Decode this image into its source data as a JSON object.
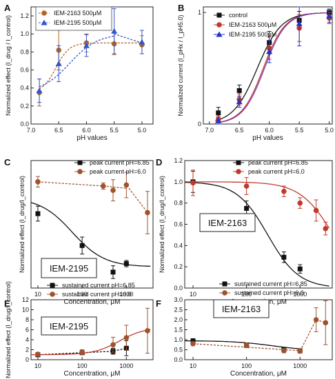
{
  "chart_data": [
    {
      "panel": "A",
      "type": "line",
      "xlabel": "pH values",
      "ylabel": "Normalized effect (I_drug / I_control)",
      "xlim": [
        7.0,
        4.8
      ],
      "ylim": [
        0,
        1.3
      ],
      "xticks": [
        "7.0",
        "6.5",
        "6.0",
        "5.5",
        "5.0"
      ],
      "yticks": [
        "0.0",
        "0.2",
        "0.4",
        "0.6",
        "0.8",
        "1.0",
        "1.2"
      ],
      "legend_position": "top-left",
      "x": [
        6.85,
        6.5,
        6.0,
        5.5,
        5.0
      ],
      "series": [
        {
          "name": "IEM-2163 500μM",
          "color": "#b5651d",
          "marker": "circle",
          "values": [
            0.35,
            0.82,
            0.9,
            0.89,
            0.88
          ],
          "err": [
            0.15,
            0.22,
            0.1,
            0.12,
            0.1
          ]
        },
        {
          "name": "IEM-2195 500μM",
          "color": "#3355cc",
          "marker": "triangle",
          "values": [
            0.37,
            0.67,
            0.87,
            1.03,
            0.91
          ],
          "err": [
            0.13,
            0.2,
            0.12,
            0.25,
            0.13
          ]
        }
      ]
    },
    {
      "panel": "B",
      "type": "line",
      "xlabel": "pH values",
      "ylabel": "Normalized current (I_pHx / I_pH5.0)",
      "xlim": [
        7.1,
        4.95
      ],
      "ylim": [
        0,
        1.05
      ],
      "xticks": [
        "7.0",
        "6.5",
        "6.0",
        "5.5",
        "5.0"
      ],
      "yticks": [
        "0",
        "1"
      ],
      "legend_position": "top-left",
      "x": [
        6.85,
        6.5,
        6.0,
        5.5,
        5.0
      ],
      "series": [
        {
          "name": "control",
          "color": "#111111",
          "marker": "square",
          "values": [
            0.1,
            0.3,
            0.73,
            0.93,
            1.0
          ],
          "err": [
            0.05,
            0.05,
            0.1,
            0.08,
            0.03
          ]
        },
        {
          "name": "IEM-2163 500μM",
          "color": "#c0392b",
          "marker": "circle",
          "values": [
            0.04,
            0.22,
            0.68,
            0.86,
            0.95
          ],
          "err": [
            0.03,
            0.05,
            0.1,
            0.12,
            0.05
          ]
        },
        {
          "name": "IEM-2195 500μM",
          "color": "#2233cc",
          "marker": "triangle",
          "values": [
            0.03,
            0.2,
            0.65,
            0.9,
            0.97
          ],
          "err": [
            0.03,
            0.05,
            0.1,
            0.2,
            0.06
          ]
        }
      ]
    },
    {
      "panel": "C",
      "type": "scatter",
      "label": "IEM-2195",
      "xlabel": "Concentration, μM",
      "ylabel": "Normalized effect (I_drug/I_control)",
      "xscale": "log",
      "xlim": [
        7,
        4000
      ],
      "ylim": [
        0,
        1.2
      ],
      "xticks": [
        "10",
        "100",
        "1000"
      ],
      "yticks": [],
      "legend_position": "top",
      "series": [
        {
          "name": "peak current pH=6.85",
          "color": "#111111",
          "marker": "square",
          "x": [
            10,
            100,
            500,
            1000
          ],
          "values": [
            0.7,
            0.4,
            0.15,
            0.23
          ],
          "err": [
            0.07,
            0.08,
            0.06,
            0.03
          ]
        },
        {
          "name": "peak current pH=6.0",
          "color": "#a0522d",
          "marker": "circle",
          "x": [
            10,
            300,
            500,
            1000,
            3000
          ],
          "values": [
            1.0,
            0.96,
            0.92,
            0.97,
            0.71
          ],
          "err": [
            0.05,
            0.03,
            0.1,
            0.12,
            0.2
          ]
        }
      ]
    },
    {
      "panel": "D",
      "type": "scatter",
      "label": "IEM-2163",
      "xlabel": "Concentration, μM",
      "ylabel": "Normalized effect (I_drug/I_control)",
      "xscale": "log",
      "xlim": [
        7,
        4000
      ],
      "ylim": [
        0,
        1.2
      ],
      "xticks": [
        "10",
        "100",
        "1000"
      ],
      "yticks": [
        "0.0",
        "0.2",
        "0.4",
        "0.6",
        "0.8",
        "1.0",
        "1.2"
      ],
      "legend_position": "top",
      "series": [
        {
          "name": "peak current pH=6.85",
          "color": "#111111",
          "marker": "square",
          "x": [
            10,
            100,
            500,
            1000
          ],
          "values": [
            1.0,
            0.75,
            0.29,
            0.18
          ],
          "err": [
            0.1,
            0.07,
            0.05,
            0.04
          ]
        },
        {
          "name": "peak current pH=6.0",
          "color": "#c0392b",
          "marker": "circle",
          "x": [
            10,
            100,
            500,
            1000,
            2000,
            3000
          ],
          "values": [
            0.99,
            0.96,
            0.91,
            0.8,
            0.73,
            0.56
          ],
          "err": [
            0.12,
            0.08,
            0.05,
            0.05,
            0.1,
            0.06
          ]
        }
      ]
    },
    {
      "panel": "E",
      "type": "scatter",
      "label": "IEM-2195",
      "xlabel": "Concentration, μM",
      "ylabel": "Normalized effect (I_drug/I_control)",
      "xscale": "log",
      "xlim": [
        7,
        4000
      ],
      "ylim": [
        0,
        12
      ],
      "xticks": [
        "10",
        "100",
        "1000"
      ],
      "yticks": [
        "0",
        "2",
        "4",
        "6",
        "8",
        "10",
        "12"
      ],
      "legend_position": "top",
      "series": [
        {
          "name": "sustained current pH=6.85",
          "color": "#111111",
          "marker": "square",
          "x": [
            10,
            100,
            500,
            1000
          ],
          "values": [
            1.0,
            1.4,
            1.7,
            2.3
          ],
          "err": [
            0.2,
            0.4,
            0.6,
            1.5
          ]
        },
        {
          "name": "sustained current pH=6.0",
          "color": "#a0522d",
          "marker": "circle",
          "x": [
            10,
            100,
            500,
            1000,
            3000
          ],
          "values": [
            1.1,
            1.5,
            3.0,
            4.4,
            5.8
          ],
          "err": [
            0.2,
            0.5,
            1.5,
            2.5,
            4.5
          ]
        }
      ]
    },
    {
      "panel": "F",
      "type": "scatter",
      "label": "IEM-2163",
      "xlabel": "Concentration, μM",
      "ylabel": "",
      "xscale": "log",
      "xlim": [
        7,
        4000
      ],
      "ylim": [
        0,
        3.0
      ],
      "xticks": [
        "10",
        "100",
        "1000"
      ],
      "yticks": [
        "0.0",
        "0.5",
        "1.0",
        "1.5",
        "2.0",
        "2.5",
        "3.0"
      ],
      "legend_position": "top",
      "series": [
        {
          "name": "sustained current pH=6.85",
          "color": "#111111",
          "marker": "square",
          "x": [
            10,
            100,
            500,
            1000
          ],
          "values": [
            0.95,
            0.72,
            0.5,
            0.45
          ],
          "err": [
            0.1,
            0.1,
            0.12,
            0.1
          ]
        },
        {
          "name": "sustained current pH=6.0",
          "color": "#a0522d",
          "marker": "circle",
          "x": [
            10,
            100,
            500,
            1000,
            2000,
            3000
          ],
          "values": [
            0.8,
            0.72,
            0.45,
            0.43,
            2.0,
            1.85
          ],
          "err": [
            0.1,
            0.12,
            0.1,
            0.1,
            0.6,
            1.1
          ]
        }
      ]
    }
  ]
}
